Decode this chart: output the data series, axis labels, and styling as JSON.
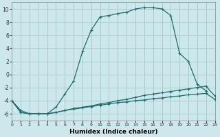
{
  "xlabel": "Humidex (Indice chaleur)",
  "background_color": "#cce8ec",
  "grid_color": "#aacccc",
  "line_color": "#1e6b6b",
  "xlim": [
    0,
    23
  ],
  "ylim": [
    -7,
    11
  ],
  "xticks": [
    0,
    1,
    2,
    3,
    4,
    5,
    6,
    7,
    8,
    9,
    10,
    11,
    12,
    13,
    14,
    15,
    16,
    17,
    18,
    19,
    20,
    21,
    22,
    23
  ],
  "yticks": [
    -6,
    -4,
    -2,
    0,
    2,
    4,
    6,
    8,
    10
  ],
  "series1_x": [
    0,
    1,
    2,
    3,
    4,
    5,
    6,
    7,
    8,
    9,
    10,
    11,
    12,
    13,
    14,
    15,
    16,
    17,
    18,
    19,
    20,
    21,
    22
  ],
  "series1_y": [
    -4,
    -5.5,
    -6,
    -6,
    -6,
    -5,
    -3,
    -1,
    3.5,
    6.8,
    8.8,
    9.0,
    9.3,
    9.5,
    10.0,
    10.2,
    10.2,
    10.0,
    9.0,
    3.2,
    2.0,
    -1.5,
    -2.5
  ],
  "series2_x": [
    0,
    1,
    2,
    3,
    4,
    5,
    6,
    7,
    8,
    9,
    10,
    11,
    12,
    13,
    14,
    15,
    16,
    17,
    18,
    19,
    20,
    21,
    22,
    23
  ],
  "series2_y": [
    -4,
    -5.8,
    -6,
    -6,
    -6,
    -5.8,
    -5.5,
    -5.2,
    -5.0,
    -4.8,
    -4.5,
    -4.3,
    -4.0,
    -3.8,
    -3.5,
    -3.2,
    -3.0,
    -2.8,
    -2.6,
    -2.4,
    -2.2,
    -2.0,
    -1.8,
    -3.3
  ],
  "series3_x": [
    0,
    1,
    2,
    3,
    4,
    5,
    6,
    7,
    8,
    9,
    10,
    11,
    12,
    13,
    14,
    15,
    16,
    17,
    18,
    19,
    20,
    21,
    22,
    23
  ],
  "series3_y": [
    -4,
    -5.8,
    -6,
    -6,
    -6,
    -5.8,
    -5.5,
    -5.3,
    -5.1,
    -4.9,
    -4.7,
    -4.5,
    -4.3,
    -4.2,
    -4.0,
    -3.9,
    -3.7,
    -3.6,
    -3.4,
    -3.3,
    -3.1,
    -3.0,
    -2.9,
    -3.8
  ]
}
